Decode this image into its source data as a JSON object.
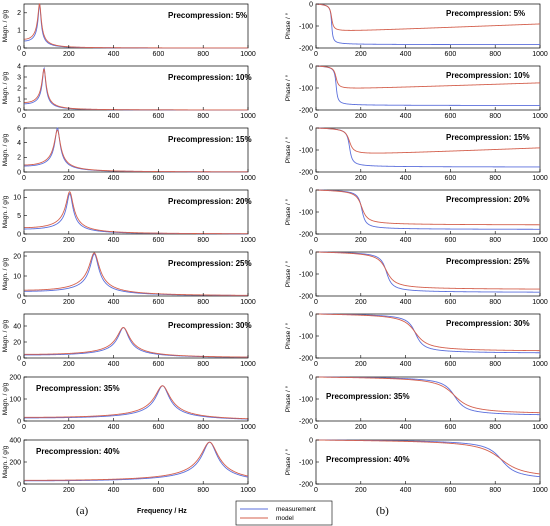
{
  "chart_data": {
    "type": "line",
    "x_axis": {
      "label": "Frequency / Hz",
      "lim": [
        0,
        1000
      ],
      "ticks": [
        0,
        200,
        400,
        600,
        800,
        1000
      ]
    },
    "legend": {
      "placement": "bottom-center",
      "entries": [
        "measurement",
        "model"
      ]
    },
    "colors": {
      "measurement": "#5b6fdc",
      "model": "#d4604e",
      "frame": "#000000"
    },
    "panel_labels": {
      "left": "(a)",
      "right": "(b)"
    },
    "rows": [
      {
        "precompression": "Precompression: 5%",
        "f0": 70,
        "mag_ylim": [
          0,
          2.5
        ],
        "mag_ticks": [
          0,
          1,
          2
        ],
        "mag_peak_meas": 2.5,
        "mag_peak_model": 2.5,
        "phase_final_meas": -185,
        "phase_final_model": -130
      },
      {
        "precompression": "Precompression: 10%",
        "f0": 90,
        "mag_ylim": [
          0,
          4
        ],
        "mag_ticks": [
          0,
          1,
          2,
          3,
          4
        ],
        "mag_peak_meas": 3.8,
        "mag_peak_model": 3.7,
        "phase_final_meas": -180,
        "phase_final_model": -110
      },
      {
        "precompression": "Precompression: 15%",
        "f0": 150,
        "mag_ylim": [
          0,
          6
        ],
        "mag_ticks": [
          0,
          2,
          4,
          6
        ],
        "mag_peak_meas": 6,
        "mag_peak_model": 5.7,
        "phase_final_meas": -178,
        "phase_final_model": -130
      },
      {
        "precompression": "Precompression: 20%",
        "f0": 205,
        "mag_ylim": [
          0,
          12
        ],
        "mag_ticks": [
          0,
          5,
          10
        ],
        "mag_peak_meas": 11,
        "mag_peak_model": 11.5,
        "phase_final_meas": -180,
        "phase_final_model": -160
      },
      {
        "precompression": "Precompression: 25%",
        "f0": 315,
        "mag_ylim": [
          0,
          22
        ],
        "mag_ticks": [
          0,
          10,
          20
        ],
        "mag_peak_meas": 21,
        "mag_peak_model": 21.5,
        "phase_final_meas": -185,
        "phase_final_model": -172
      },
      {
        "precompression": "Precompression: 30%",
        "f0": 445,
        "mag_ylim": [
          0,
          55
        ],
        "mag_ticks": [
          0,
          20,
          40
        ],
        "mag_peak_meas": 38,
        "mag_peak_model": 38,
        "phase_final_meas": -180,
        "phase_final_model": -172
      },
      {
        "precompression": "Precompression: 35%",
        "f0": 620,
        "mag_ylim": [
          0,
          200
        ],
        "mag_ticks": [
          0,
          100,
          200
        ],
        "mag_peak_meas": 160,
        "mag_peak_model": 160,
        "phase_final_meas": -178,
        "phase_final_model": -172
      },
      {
        "precompression": "Precompression: 40%",
        "f0": 830,
        "mag_ylim": [
          0,
          400
        ],
        "mag_ticks": [
          0,
          200,
          400
        ],
        "mag_peak_meas": 380,
        "mag_peak_model": 380,
        "phase_final_meas": -185,
        "phase_final_model": -180
      }
    ],
    "magnitude_axis": {
      "label": "Magn. / g/g"
    },
    "phase_axis": {
      "label": "Phase / °",
      "lim": [
        -200,
        0
      ],
      "ticks": [
        -200,
        -100,
        0
      ]
    }
  }
}
